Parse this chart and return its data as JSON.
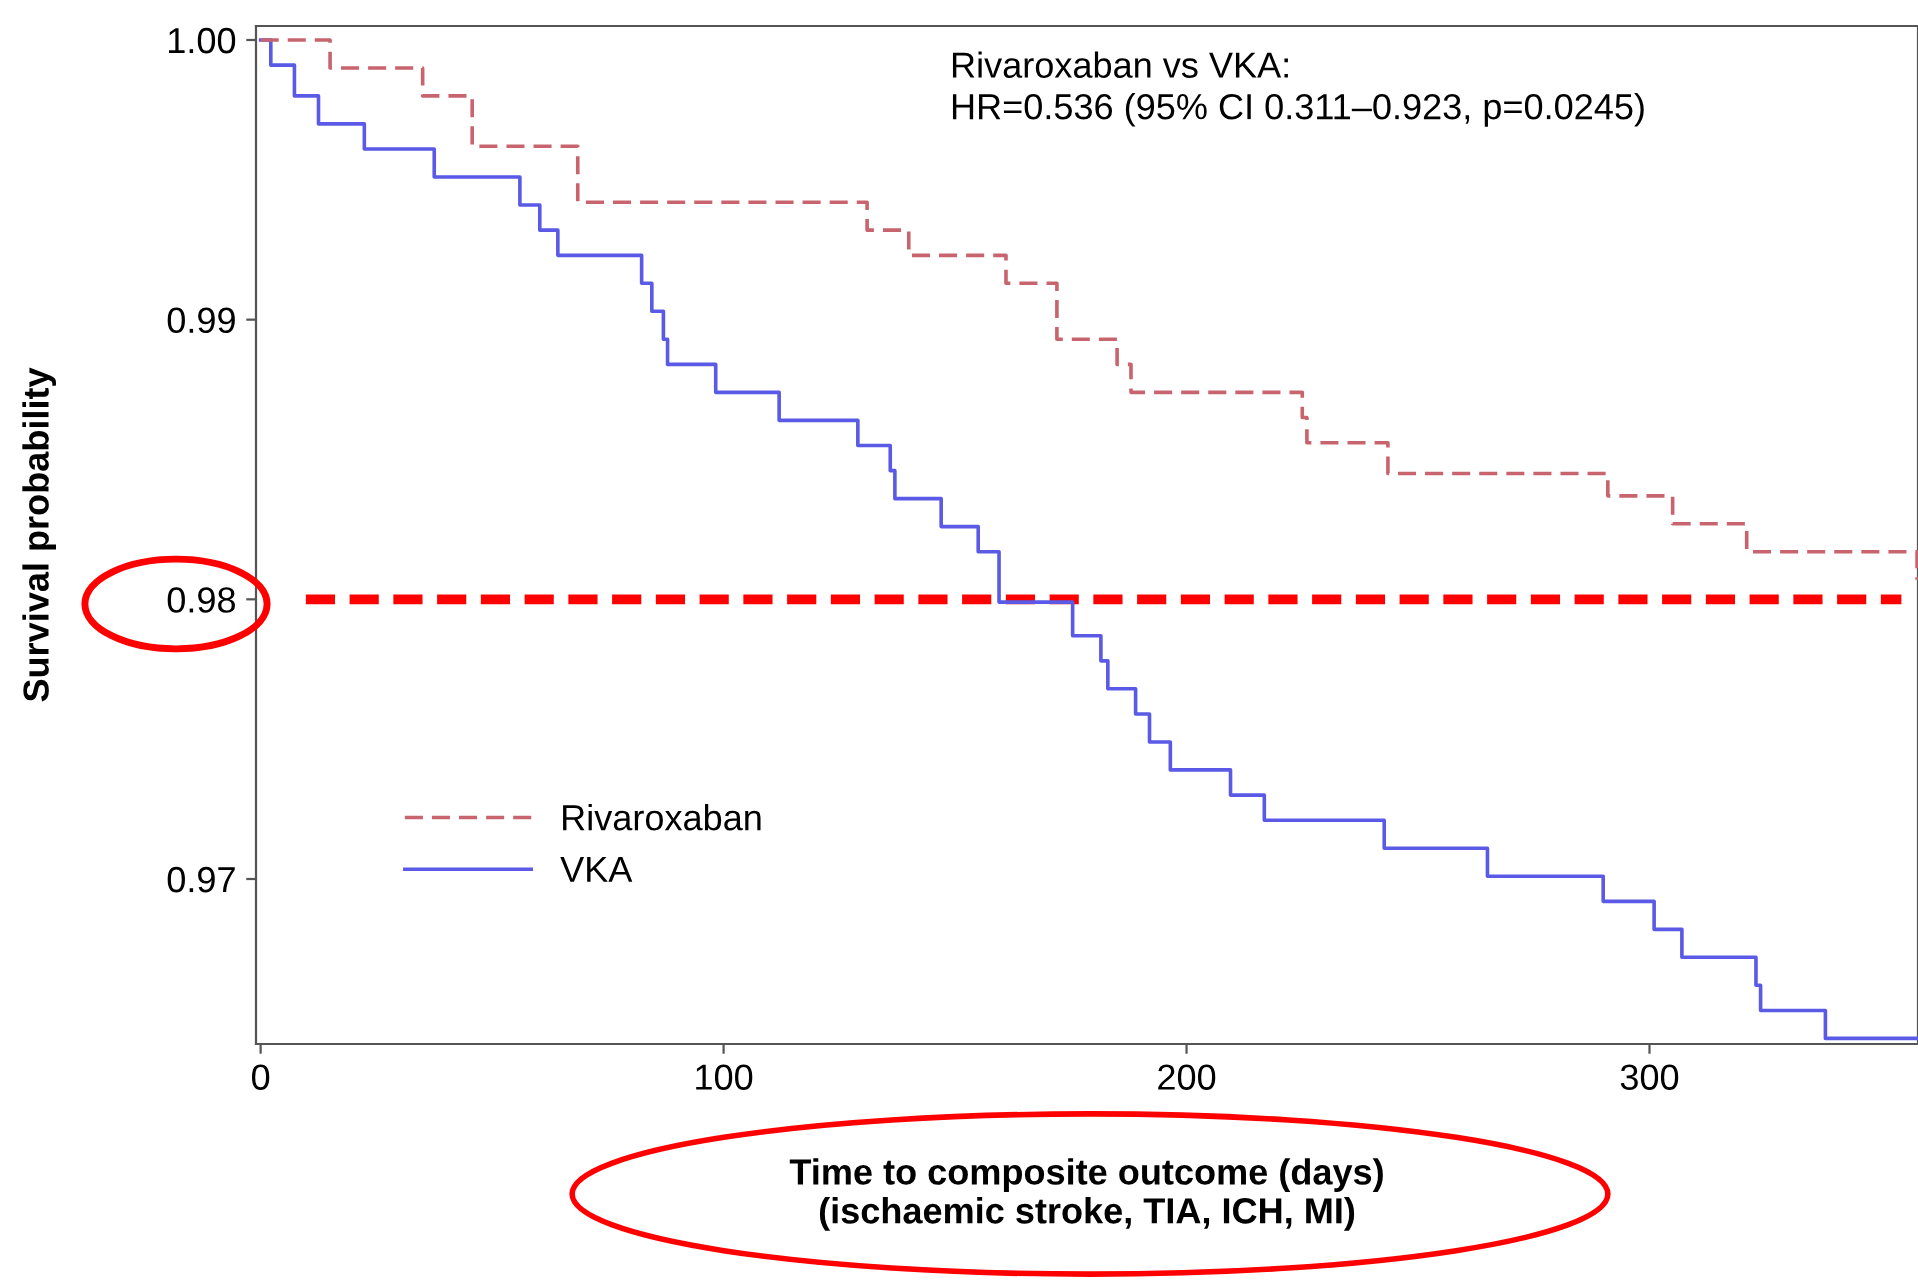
{
  "chart_data": {
    "type": "step",
    "xlabel": "Time to composite outcome (days)\n(ischaemic stroke, TIA, ICH, MI)",
    "ylabel": "Survival probability",
    "xlim": [
      -1,
      358
    ],
    "ylim": [
      0.9641,
      1.0005
    ],
    "xticks": [
      0,
      100,
      200,
      300
    ],
    "yticks": [
      0.97,
      0.98,
      0.99,
      {
        "value": 1.0,
        "label": "1.00"
      }
    ],
    "grid": false,
    "legend": "bottom left",
    "marker": "none",
    "series": [
      {
        "name": "Rivaroxaban",
        "color": "#c8646e",
        "line_style": "dashed",
        "x": [
          0,
          15,
          35,
          45.7,
          68.5,
          131,
          140,
          161,
          172,
          185,
          188,
          225,
          226,
          243.5,
          291,
          305,
          321,
          357.8
        ],
        "values": [
          1.0,
          0.999,
          0.998,
          0.9962,
          0.9942,
          0.9932,
          0.9923,
          0.9913,
          0.9893,
          0.9884,
          0.9874,
          0.9865,
          0.9856,
          0.9845,
          0.9837,
          0.9827,
          0.9817,
          0.9807
        ]
      },
      {
        "name": "VKA",
        "color": "#5a5ae6",
        "line_style": "solid",
        "x": [
          0,
          2.2,
          7.3,
          12.5,
          22.4,
          37.5,
          56,
          60.3,
          64.2,
          82.3,
          84.5,
          87,
          87.9,
          98.3,
          112,
          129,
          136,
          137,
          147,
          155,
          159.5,
          175.4,
          181.5,
          183,
          189,
          192,
          196.5,
          209.5,
          216.8,
          242.7,
          265,
          290,
          301,
          307,
          323,
          324,
          338,
          358
        ],
        "values": [
          1.0,
          0.9991,
          0.998,
          0.997,
          0.9961,
          0.9951,
          0.9941,
          0.9932,
          0.9923,
          0.9913,
          0.9903,
          0.9893,
          0.9884,
          0.9874,
          0.9864,
          0.9855,
          0.9846,
          0.9836,
          0.9826,
          0.9817,
          0.9799,
          0.9787,
          0.9778,
          0.9768,
          0.9759,
          0.9749,
          0.9739,
          0.973,
          0.9721,
          0.9711,
          0.9701,
          0.9692,
          0.9682,
          0.9672,
          0.9662,
          0.9653,
          0.9643,
          0.9643
        ]
      }
    ],
    "ref_lines": [
      {
        "axis": "y",
        "value": 0.98,
        "color": "#ff0000",
        "line_style": "dashed"
      }
    ],
    "annotations": [
      "Rivaroxaban vs VKA:\nHR=0.536 (95% CI 0.311–0.923, p=0.0245)"
    ]
  }
}
